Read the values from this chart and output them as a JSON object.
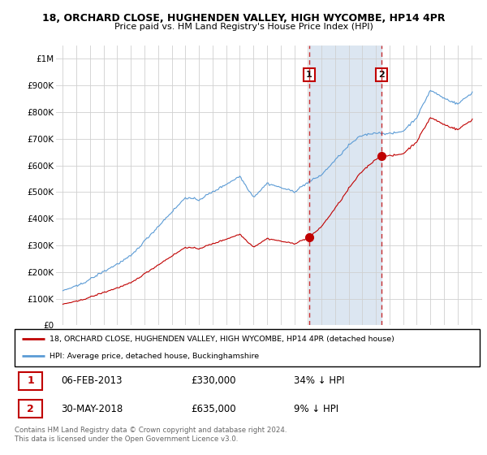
{
  "title1": "18, ORCHARD CLOSE, HUGHENDEN VALLEY, HIGH WYCOMBE, HP14 4PR",
  "title2": "Price paid vs. HM Land Registry's House Price Index (HPI)",
  "hpi_label": "HPI: Average price, detached house, Buckinghamshire",
  "property_label": "18, ORCHARD CLOSE, HUGHENDEN VALLEY, HIGH WYCOMBE, HP14 4PR (detached house)",
  "transaction1": {
    "num": 1,
    "date": "06-FEB-2013",
    "price": 330000,
    "hpi_diff": "34% ↓ HPI",
    "year": 2013.1
  },
  "transaction2": {
    "num": 2,
    "date": "30-MAY-2018",
    "price": 635000,
    "hpi_diff": "9% ↓ HPI",
    "year": 2018.4
  },
  "ylim": [
    0,
    1050000
  ],
  "yticks": [
    0,
    100000,
    200000,
    300000,
    400000,
    500000,
    600000,
    700000,
    800000,
    900000,
    1000000
  ],
  "ytick_labels": [
    "£0",
    "£100K",
    "£200K",
    "£300K",
    "£400K",
    "£500K",
    "£600K",
    "£700K",
    "£800K",
    "£900K",
    "£1M"
  ],
  "hpi_color": "#5b9bd5",
  "property_color": "#c00000",
  "vline_color": "#c00000",
  "grid_color": "#d0d0d0",
  "bg_color": "#ffffff",
  "highlight_fill": "#dce6f1",
  "footer": "Contains HM Land Registry data © Crown copyright and database right 2024.\nThis data is licensed under the Open Government Licence v3.0.",
  "xlim_left": 1994.5,
  "xlim_right": 2025.8,
  "xticks": [
    1995,
    1996,
    1997,
    1998,
    1999,
    2000,
    2001,
    2002,
    2003,
    2004,
    2005,
    2006,
    2007,
    2008,
    2009,
    2010,
    2011,
    2012,
    2013,
    2014,
    2015,
    2016,
    2017,
    2018,
    2019,
    2020,
    2021,
    2022,
    2023,
    2024,
    2025
  ]
}
